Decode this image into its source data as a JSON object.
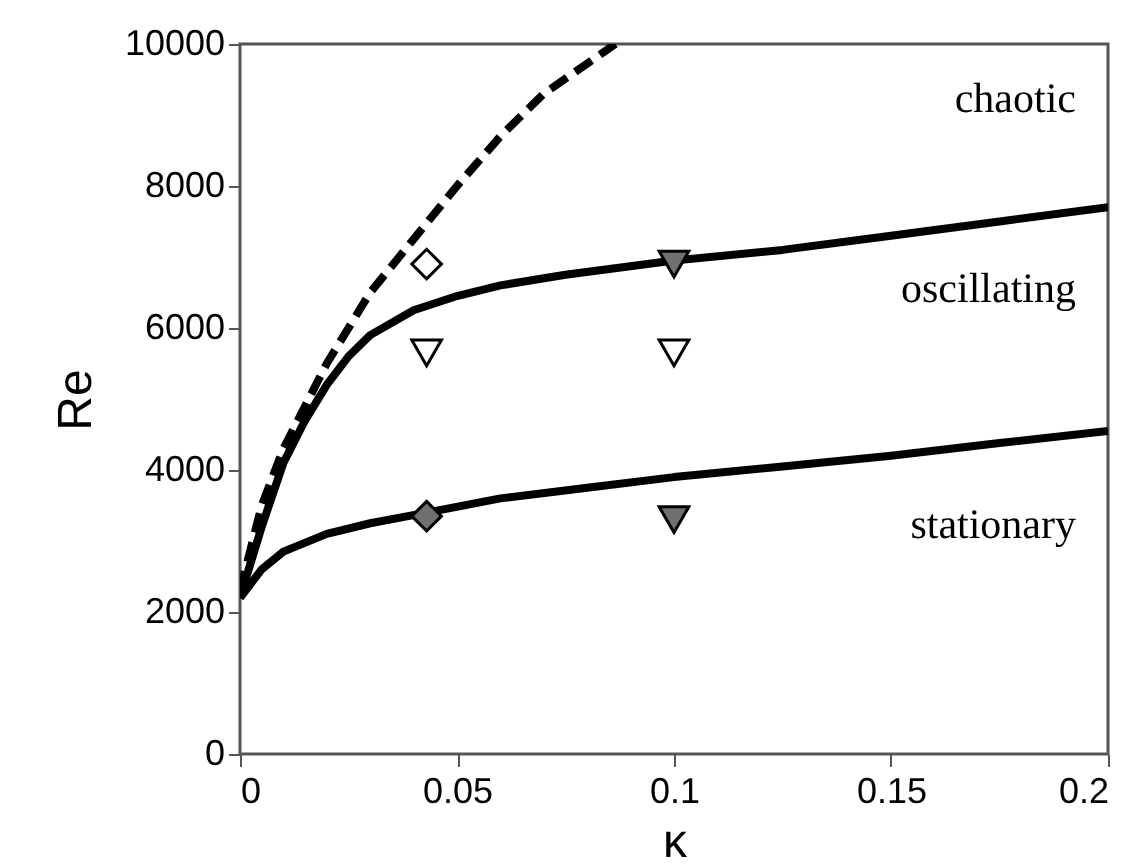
{
  "chart_data": {
    "type": "line",
    "xlabel": "κ",
    "ylabel": "Re",
    "xlim": [
      0,
      0.2
    ],
    "ylim": [
      0,
      10000
    ],
    "xticks": [
      0,
      0.05,
      0.1,
      0.15,
      0.2
    ],
    "yticks": [
      0,
      2000,
      4000,
      6000,
      8000,
      10000
    ],
    "grid": false,
    "series": [
      {
        "color": "#000000",
        "line_style": "solid",
        "x": [
          0,
          0.005,
          0.01,
          0.02,
          0.03,
          0.043,
          0.06,
          0.08,
          0.1,
          0.125,
          0.15,
          0.175,
          0.2
        ],
        "values": [
          2200,
          2600,
          2850,
          3100,
          3250,
          3400,
          3600,
          3750,
          3900,
          4050,
          4200,
          4380,
          4550
        ]
      },
      {
        "color": "#000000",
        "line_style": "solid",
        "x": [
          0,
          0.005,
          0.01,
          0.015,
          0.02,
          0.025,
          0.03,
          0.04,
          0.05,
          0.06,
          0.075,
          0.1,
          0.125,
          0.15,
          0.175,
          0.2
        ],
        "values": [
          2200,
          3200,
          4100,
          4700,
          5200,
          5600,
          5900,
          6250,
          6450,
          6600,
          6750,
          6950,
          7100,
          7300,
          7500,
          7700
        ]
      },
      {
        "color": "#000000",
        "line_style": "dashed",
        "x": [
          0,
          0.005,
          0.01,
          0.02,
          0.03,
          0.04,
          0.05,
          0.06,
          0.07,
          0.0865
        ],
        "values": [
          2300,
          3500,
          4300,
          5500,
          6500,
          7250,
          8000,
          8700,
          9300,
          10000
        ]
      },
      {
        "type": "scatter",
        "color": "#ffffff",
        "marker": "diamond",
        "x": [
          0.043
        ],
        "values": [
          6900
        ]
      },
      {
        "type": "scatter",
        "color": "#707070",
        "marker": "diamond",
        "x": [
          0.043
        ],
        "values": [
          3350
        ]
      },
      {
        "type": "scatter",
        "color": "#707070",
        "marker": "triangle",
        "x": [
          0.1,
          0.1
        ],
        "values": [
          6900,
          3300
        ]
      },
      {
        "type": "scatter",
        "color": "#ffffff",
        "marker": "triangle",
        "x": [
          0.043,
          0.1
        ],
        "values": [
          5650,
          5650
        ]
      }
    ],
    "annotations": [
      "chaotic",
      "oscillating",
      "stationary"
    ]
  }
}
